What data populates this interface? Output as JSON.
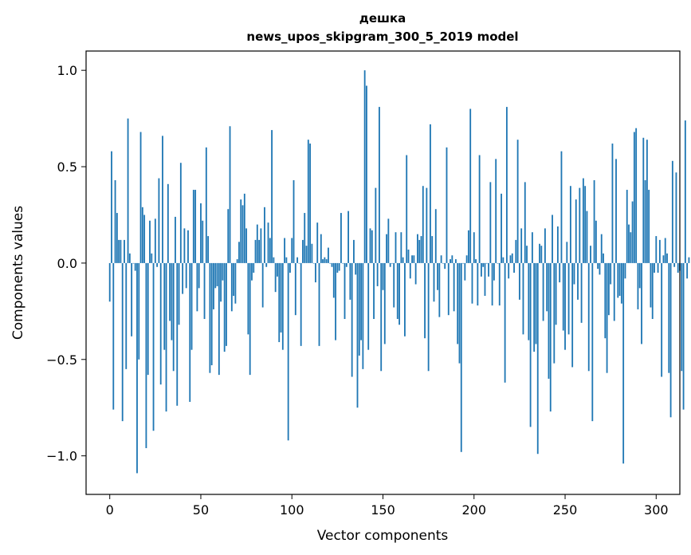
{
  "chart_data": {
    "type": "bar",
    "title": "дешка",
    "subtitle": "news_upos_skipgram_300_5_2019 model",
    "xlabel": "Vector components",
    "ylabel": "Components values",
    "xlim": [
      -13,
      313
    ],
    "ylim": [
      -1.2,
      1.1
    ],
    "xticks": [
      0,
      50,
      100,
      150,
      200,
      250,
      300
    ],
    "yticks": [
      -1.0,
      -0.5,
      0.0,
      0.5,
      1.0
    ],
    "ytick_labels": [
      "−1.0",
      "−0.5",
      "0.0",
      "0.5",
      "1.0"
    ],
    "bar_color": "#1f77b4",
    "grid": false,
    "values": [
      -0.2,
      0.58,
      -0.76,
      0.43,
      0.26,
      0.12,
      0.12,
      -0.82,
      0.12,
      -0.55,
      0.75,
      0.05,
      -0.38,
      0.0,
      -0.04,
      -1.09,
      -0.5,
      0.68,
      0.29,
      0.25,
      -0.96,
      -0.58,
      0.22,
      0.05,
      -0.87,
      0.23,
      -0.02,
      0.44,
      -0.63,
      0.66,
      -0.45,
      -0.77,
      0.41,
      -0.3,
      -0.4,
      -0.56,
      0.24,
      -0.74,
      -0.32,
      0.52,
      -0.16,
      0.18,
      -0.13,
      0.17,
      -0.72,
      -0.45,
      0.38,
      0.38,
      -0.25,
      -0.13,
      0.31,
      0.22,
      -0.29,
      0.6,
      0.14,
      -0.57,
      -0.53,
      -0.24,
      -0.13,
      -0.12,
      -0.58,
      -0.2,
      -0.09,
      -0.46,
      -0.43,
      0.28,
      0.71,
      -0.25,
      -0.17,
      -0.21,
      0.02,
      0.11,
      0.33,
      0.3,
      0.36,
      0.18,
      -0.37,
      -0.58,
      -0.09,
      -0.05,
      0.12,
      0.2,
      0.12,
      0.18,
      -0.23,
      0.29,
      -0.02,
      0.21,
      0.13,
      0.69,
      0.03,
      -0.15,
      -0.07,
      -0.41,
      -0.36,
      -0.45,
      0.13,
      0.03,
      -0.92,
      -0.05,
      0.13,
      0.43,
      -0.27,
      0.03,
      0.0,
      -0.43,
      0.12,
      0.26,
      0.09,
      0.64,
      0.62,
      0.1,
      0.0,
      -0.1,
      0.21,
      -0.43,
      0.15,
      0.02,
      0.03,
      0.02,
      0.08,
      0.0,
      -0.02,
      -0.18,
      -0.4,
      -0.05,
      -0.04,
      0.26,
      0.0,
      -0.29,
      -0.02,
      0.27,
      -0.19,
      -0.59,
      0.12,
      -0.06,
      -0.75,
      -0.48,
      -0.4,
      -0.55,
      1.0,
      0.92,
      -0.45,
      0.18,
      0.17,
      -0.29,
      0.39,
      -0.12,
      0.81,
      -0.56,
      -0.14,
      -0.42,
      0.15,
      0.23,
      -0.02,
      0.0,
      -0.23,
      0.16,
      -0.29,
      -0.32,
      0.16,
      0.03,
      -0.38,
      0.56,
      0.07,
      -0.08,
      0.04,
      0.04,
      -0.11,
      0.15,
      0.12,
      0.14,
      0.4,
      -0.39,
      0.39,
      -0.56,
      0.72,
      0.14,
      -0.2,
      0.28,
      -0.14,
      -0.28,
      0.04,
      0.0,
      -0.03,
      0.6,
      -0.27,
      0.02,
      0.04,
      -0.25,
      0.02,
      -0.42,
      -0.52,
      -0.98,
      0.0,
      -0.09,
      0.04,
      0.17,
      0.8,
      -0.21,
      0.16,
      0.02,
      -0.22,
      0.56,
      -0.07,
      -0.02,
      -0.17,
      0.0,
      -0.07,
      0.42,
      -0.22,
      -0.09,
      0.54,
      0.0,
      -0.22,
      0.36,
      0.03,
      -0.62,
      0.81,
      -0.08,
      0.04,
      0.05,
      -0.05,
      0.12,
      0.64,
      -0.19,
      0.18,
      -0.37,
      0.42,
      0.09,
      -0.4,
      -0.85,
      0.16,
      -0.46,
      -0.42,
      -0.99,
      0.1,
      0.09,
      -0.3,
      0.18,
      -0.25,
      -0.6,
      -0.77,
      0.25,
      -0.52,
      -0.32,
      0.19,
      -0.1,
      0.58,
      -0.35,
      -0.45,
      0.11,
      -0.37,
      0.4,
      -0.54,
      -0.11,
      0.33,
      -0.19,
      0.39,
      -0.31,
      0.44,
      0.4,
      0.27,
      -0.56,
      0.09,
      -0.82,
      0.43,
      0.22,
      -0.03,
      -0.06,
      0.15,
      0.05,
      -0.39,
      -0.57,
      -0.27,
      -0.11,
      0.62,
      -0.3,
      0.54,
      -0.18,
      -0.17,
      -0.21,
      -1.04,
      -0.08,
      0.38,
      0.2,
      0.16,
      0.32,
      0.68,
      0.7,
      -0.24,
      -0.13,
      -0.42,
      0.65,
      0.43,
      0.64,
      0.38,
      -0.23,
      -0.29,
      -0.05,
      0.14,
      -0.05,
      0.12,
      -0.59,
      0.04,
      0.13,
      0.05,
      -0.57,
      -0.8,
      0.53,
      -0.02,
      0.47,
      -0.05,
      -0.04,
      -0.56,
      -0.76,
      0.74,
      -0.08,
      0.03
    ]
  }
}
